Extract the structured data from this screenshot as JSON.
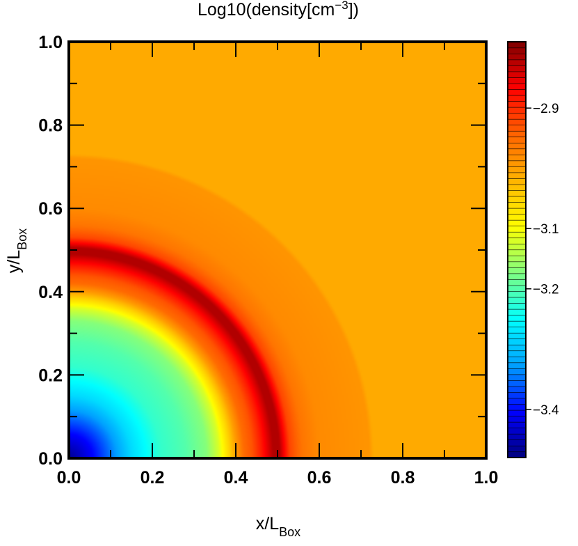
{
  "chart_data": {
    "type": "heatmap",
    "title": {
      "base": "Log10(density[cm",
      "sup": "−3",
      "close": "])"
    },
    "xlabel": {
      "base": "x/L",
      "sub": "Box"
    },
    "ylabel": {
      "base": "y/L",
      "sub": "Box"
    },
    "xlim": [
      0.0,
      1.0
    ],
    "ylim": [
      0.0,
      1.0
    ],
    "x_ticks": [
      "0.0",
      "0.2",
      "0.4",
      "0.6",
      "0.8",
      "1.0"
    ],
    "y_ticks": [
      "0.0",
      "0.2",
      "0.4",
      "0.6",
      "0.8",
      "1.0"
    ],
    "x_tick_values": [
      0.0,
      0.2,
      0.4,
      0.6,
      0.8,
      1.0
    ],
    "y_tick_values": [
      0.0,
      0.2,
      0.4,
      0.6,
      0.8,
      1.0
    ],
    "colorbar": {
      "range": [
        -3.48,
        -2.79
      ],
      "ticks": [
        {
          "value": -2.9,
          "label": "−2.9"
        },
        {
          "value": -3.1,
          "label": "−3.1"
        },
        {
          "value": -3.2,
          "label": "−3.2"
        },
        {
          "value": -3.4,
          "label": "−3.4"
        }
      ],
      "colormap": [
        "#00007f",
        "#0000ff",
        "#00a0ff",
        "#00ffff",
        "#80ff80",
        "#ffff00",
        "#ffb400",
        "#ff6400",
        "#ff0000",
        "#7f0000"
      ]
    },
    "field": {
      "description_type": "radial",
      "radial_profile": [
        {
          "r": 0.0,
          "v": -3.47
        },
        {
          "r": 0.06,
          "v": -3.4
        },
        {
          "r": 0.15,
          "v": -3.28
        },
        {
          "r": 0.22,
          "v": -3.22
        },
        {
          "r": 0.28,
          "v": -3.2
        },
        {
          "r": 0.33,
          "v": -3.17
        },
        {
          "r": 0.36,
          "v": -3.12
        },
        {
          "r": 0.385,
          "v": -3.05
        },
        {
          "r": 0.4,
          "v": -3.0
        },
        {
          "r": 0.42,
          "v": -2.95
        },
        {
          "r": 0.44,
          "v": -2.93
        },
        {
          "r": 0.46,
          "v": -2.89
        },
        {
          "r": 0.49,
          "v": -2.82
        },
        {
          "r": 0.505,
          "v": -2.82
        },
        {
          "r": 0.53,
          "v": -2.92
        },
        {
          "r": 0.56,
          "v": -2.96
        },
        {
          "r": 0.6,
          "v": -2.98
        },
        {
          "r": 0.72,
          "v": -2.99
        },
        {
          "r": 0.73,
          "v": -3.01
        },
        {
          "r": 1.5,
          "v": -3.01
        }
      ]
    }
  }
}
